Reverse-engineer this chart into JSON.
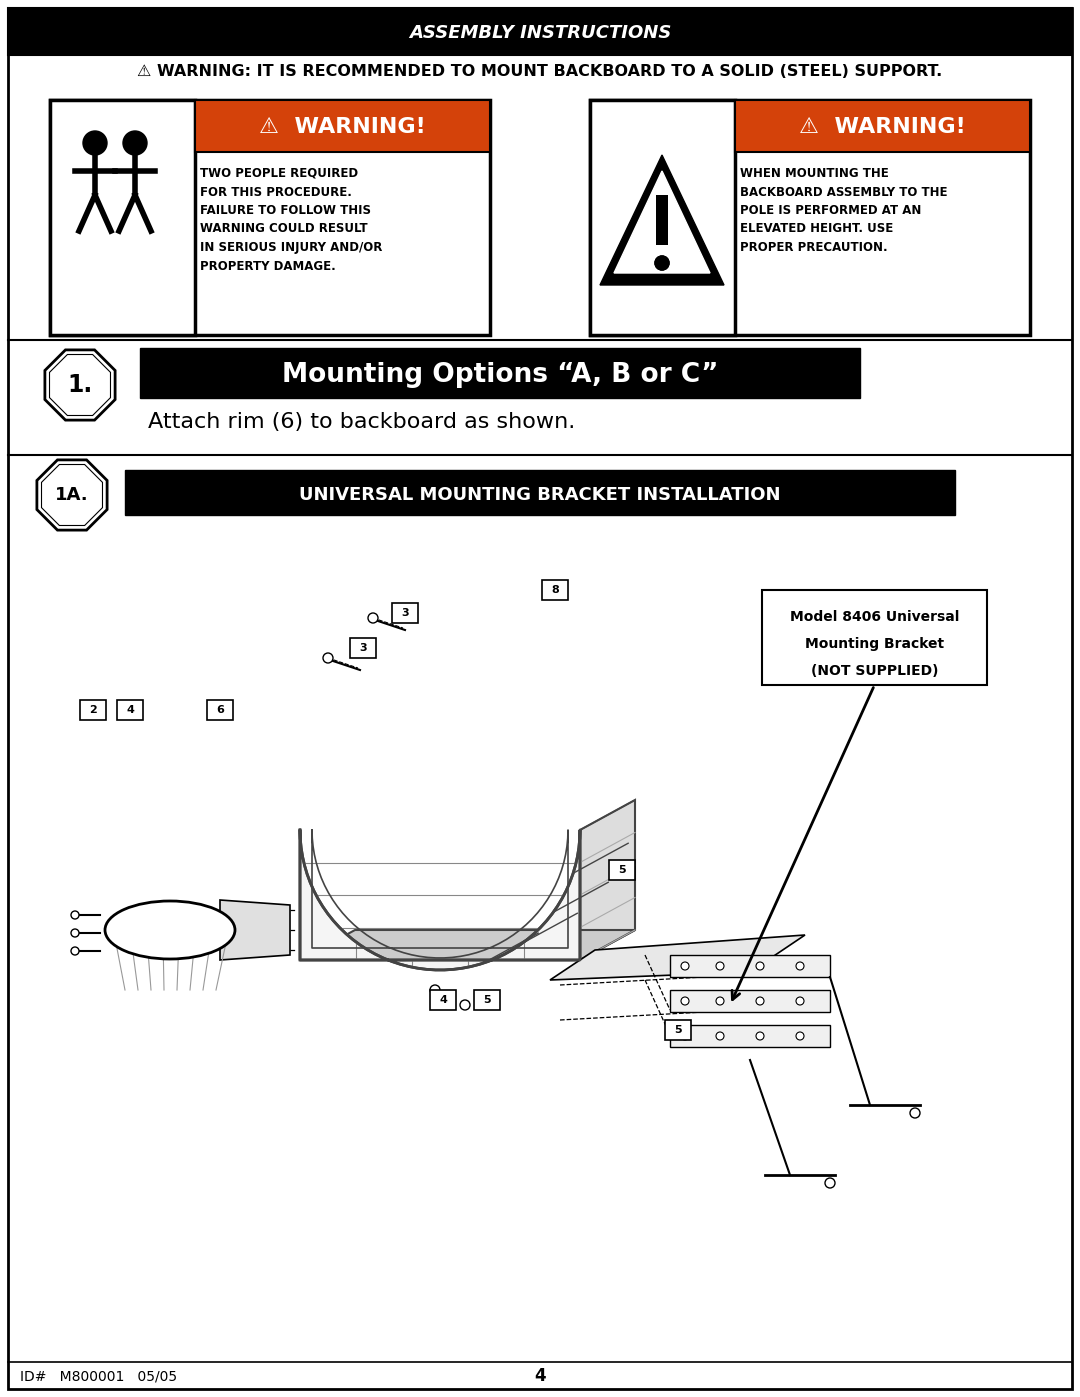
{
  "page_bg": "#ffffff",
  "header_bg": "#000000",
  "header_text": "ASSEMBLY INSTRUCTIONS",
  "warning_top": "⚠ WARNING: IT IS RECOMMENDED TO MOUNT BACKBOARD TO A SOLID (STEEL) SUPPORT.",
  "warning_orange": "#d4420a",
  "w1_title": "⚠  WARNING!",
  "w1_lines": [
    "TWO PEOPLE REQUIRED",
    "FOR THIS PROCEDURE.",
    "FAILURE TO FOLLOW THIS",
    "WARNING COULD RESULT",
    "IN SERIOUS INJURY AND/OR",
    "PROPERTY DAMAGE."
  ],
  "w2_title": "⚠  WARNING!",
  "w2_lines": [
    "WHEN MOUNTING THE",
    "BACKBOARD ASSEMBLY TO THE",
    "POLE IS PERFORMED AT AN",
    "ELEVATED HEIGHT. USE",
    "PROPER PRECAUTION."
  ],
  "step1_title": "Mounting Options “A, B or C”",
  "step1_sub": "Attach rim (6) to backboard as shown.",
  "step1A_title": "UNIVERSAL MOUNTING BRACKET INSTALLATION",
  "model_note": "Model 8406 Universal\nMounting Bracket\n(NOT SUPPLIED)",
  "footer_left": "ID#   M800001   05/05",
  "footer_center": "4"
}
